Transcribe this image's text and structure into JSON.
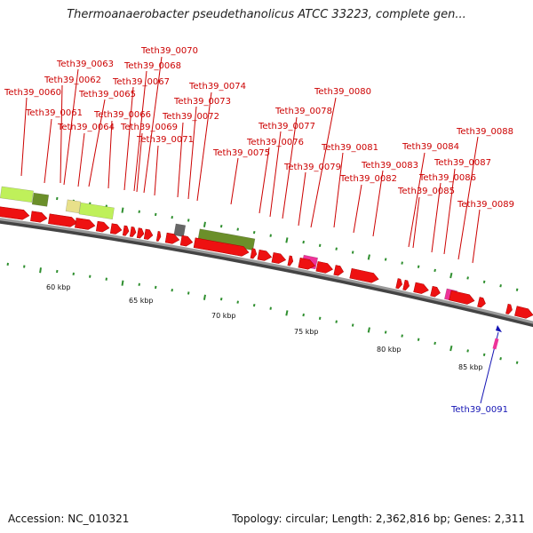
{
  "title": "Thermoanaerobacter pseudethanolicus ATCC 33223, complete gen...",
  "footer": {
    "accession": "Accession: NC_010321",
    "topology": "Topology: circular; Length: 2,362,816 bp; Genes: 2,311"
  },
  "colors": {
    "cds": "#ee1111",
    "rna": "#ee3399",
    "backbone": "#888888",
    "label": "#cc0000",
    "selected_label": "#1414b4",
    "tick": "#2f8f2f",
    "feature_lightgreen": "#bff05a",
    "feature_darkgreen": "#6b8f2a",
    "feature_khaki": "#e8e08a",
    "feature_gray": "#666666"
  },
  "scale_labels": [
    "60 kbp",
    "65 kbp",
    "70 kbp",
    "75 kbp",
    "80 kbp",
    "85 kbp"
  ],
  "gene_labels": [
    "Teth39_0060",
    "Teth39_0061",
    "Teth39_0062",
    "Teth39_0063",
    "Teth39_0064",
    "Teth39_0065",
    "Teth39_0066",
    "Teth39_0067",
    "Teth39_0068",
    "Teth39_0069",
    "Teth39_0070",
    "Teth39_0071",
    "Teth39_0072",
    "Teth39_0073",
    "Teth39_0074",
    "Teth39_0075",
    "Teth39_0076",
    "Teth39_0077",
    "Teth39_0078",
    "Teth39_0079",
    "Teth39_0080",
    "Teth39_0081",
    "Teth39_0082",
    "Teth39_0083",
    "Teth39_0084",
    "Teth39_0085",
    "Teth39_0086",
    "Teth39_0087",
    "Teth39_0088",
    "Teth39_0089",
    "Teth39_0091"
  ]
}
